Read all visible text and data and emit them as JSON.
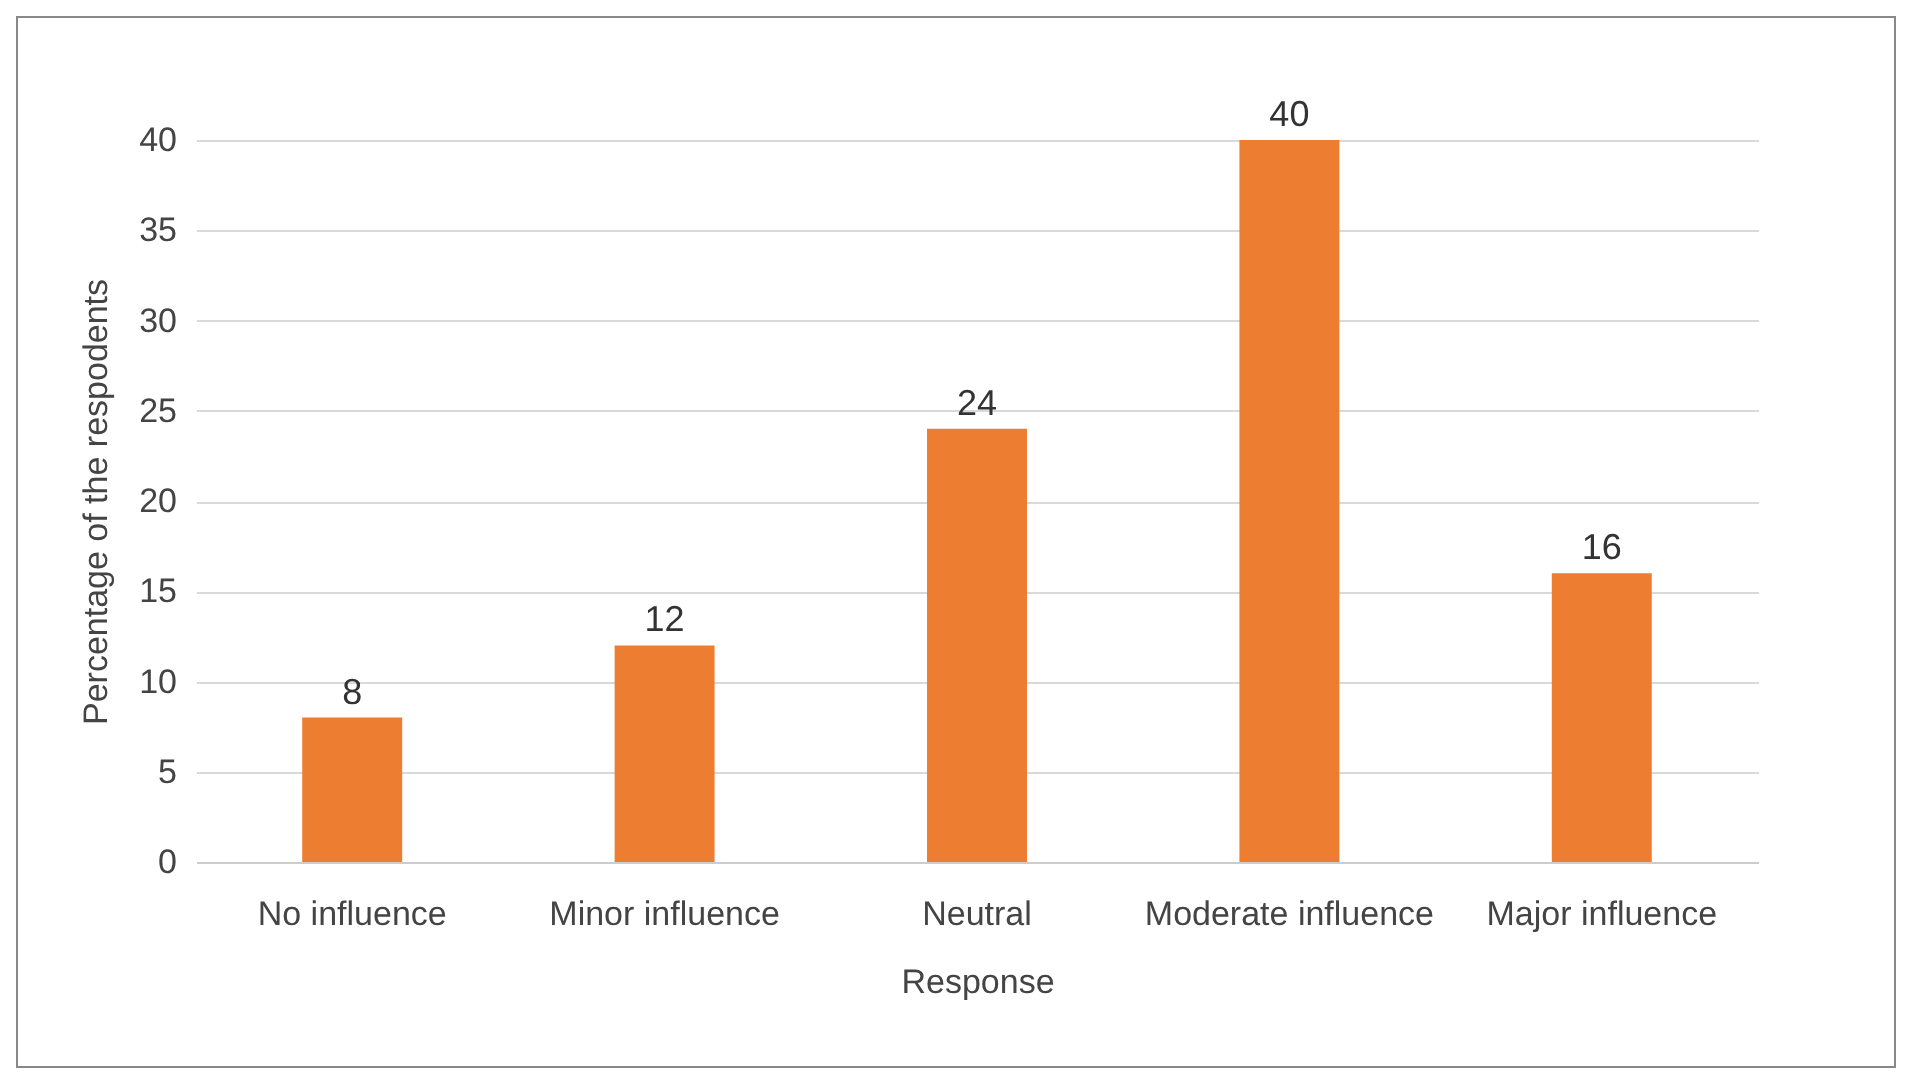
{
  "chart_data": {
    "type": "bar",
    "xlabel": "Response",
    "ylabel": "Percentage of the respodents",
    "categories": [
      "No influence",
      "Minor influence",
      "Neutral",
      "Moderate influence",
      "Major influence"
    ],
    "values": [
      8,
      12,
      24,
      40,
      16
    ],
    "color": "#ed7d31",
    "ylim": [
      0,
      40
    ],
    "yticks": [
      0,
      5,
      10,
      15,
      20,
      25,
      30,
      35,
      40
    ],
    "grid": "y",
    "data_labels": true
  }
}
